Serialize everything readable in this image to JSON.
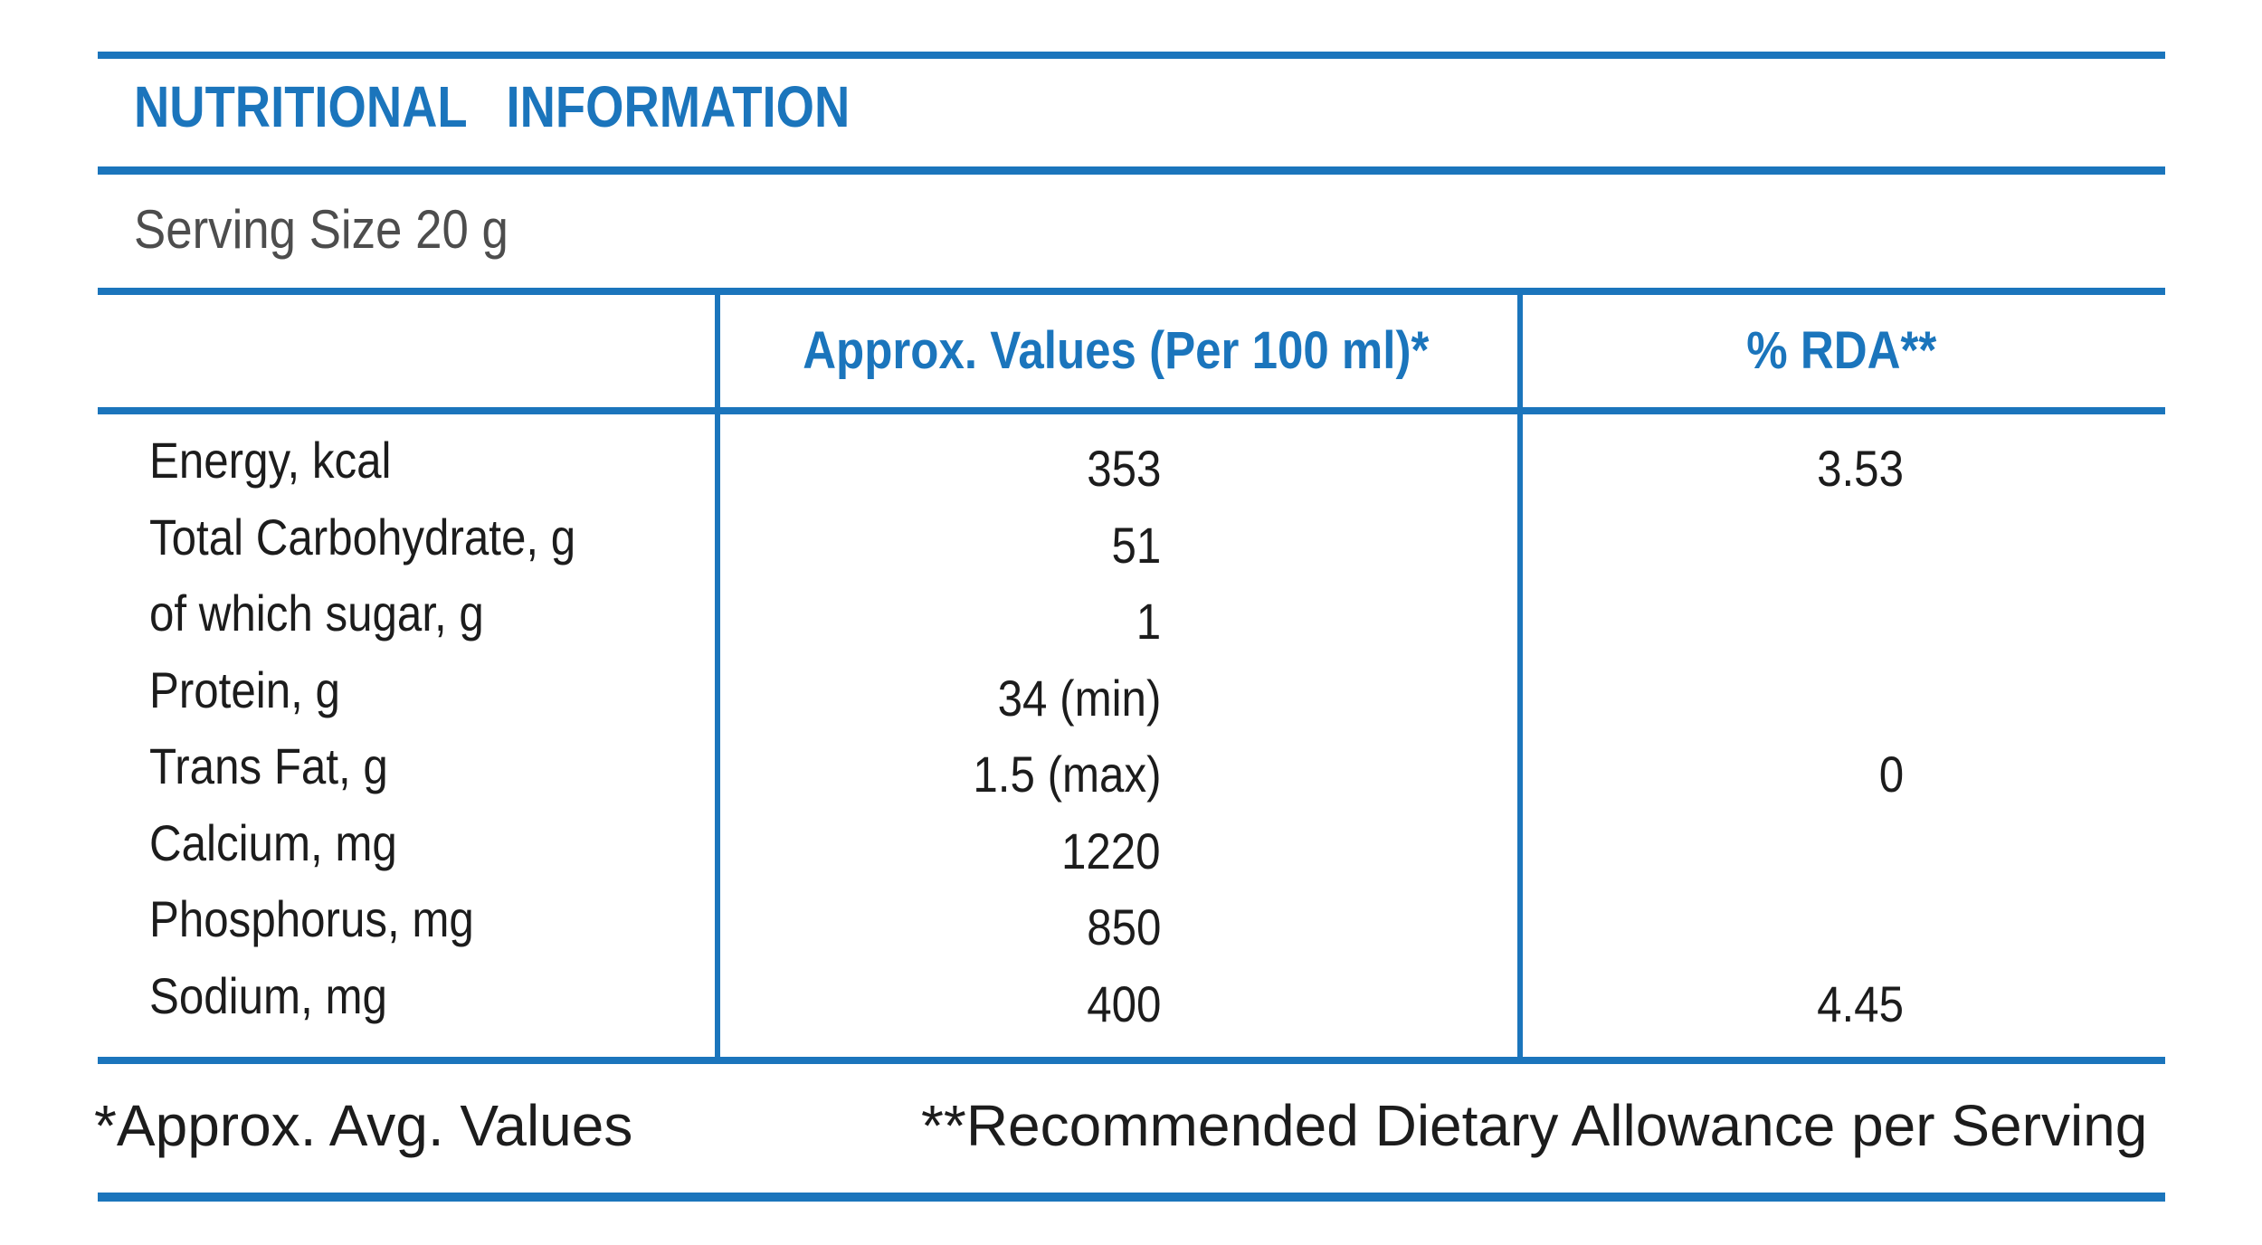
{
  "colors": {
    "accent_blue": "#1B75BC",
    "body_text": "#1C1C1C",
    "serving_text": "#4D4D4D"
  },
  "header": {
    "title": "NUTRITIONAL  INFORMATION",
    "serving_size": "Serving Size 20 g"
  },
  "table": {
    "columns": [
      "",
      "Approx. Values (Per 100 ml)*",
      "% RDA**"
    ],
    "rows": [
      {
        "label": "Energy, kcal",
        "value": "353",
        "rda": "3.53"
      },
      {
        "label": "Total Carbohydrate, g",
        "value": "51",
        "rda": ""
      },
      {
        "label": "of which sugar, g",
        "value": "1",
        "rda": ""
      },
      {
        "label": "Protein, g",
        "value": "34 (min)",
        "rda": ""
      },
      {
        "label": "Trans Fat, g",
        "value": "1.5 (max)",
        "rda": "0"
      },
      {
        "label": "Calcium, mg",
        "value": "1220",
        "rda": ""
      },
      {
        "label": "Phosphorus, mg",
        "value": "850",
        "rda": ""
      },
      {
        "label": "Sodium, mg",
        "value": "400",
        "rda": "4.45"
      }
    ]
  },
  "footnotes": {
    "left": "*Approx. Avg. Values",
    "right": "**Recommended Dietary Allowance per Serving"
  }
}
